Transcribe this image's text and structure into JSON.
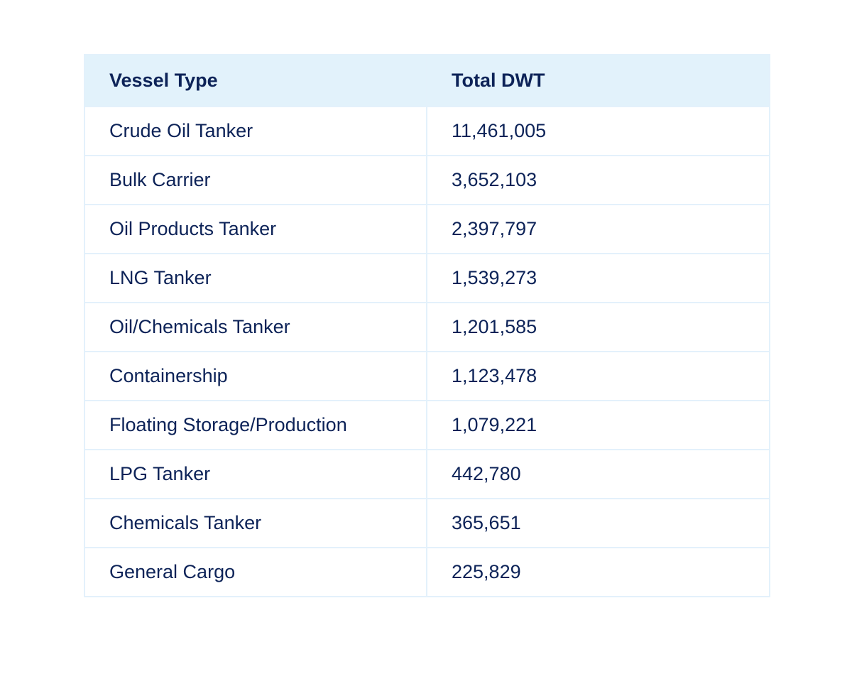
{
  "chart_data": {
    "type": "table",
    "columns": [
      "Vessel Type",
      "Total DWT"
    ],
    "rows": [
      [
        "Crude Oil Tanker",
        "11,461,005"
      ],
      [
        "Bulk Carrier",
        "3,652,103"
      ],
      [
        "Oil Products Tanker",
        "2,397,797"
      ],
      [
        "LNG Tanker",
        "1,539,273"
      ],
      [
        "Oil/Chemicals Tanker",
        "1,201,585"
      ],
      [
        "Containership",
        "1,123,478"
      ],
      [
        "Floating Storage/Production",
        "1,079,221"
      ],
      [
        "LPG Tanker",
        "442,780"
      ],
      [
        "Chemicals Tanker",
        "365,651"
      ],
      [
        "General Cargo",
        "225,829"
      ]
    ],
    "colors": {
      "header_bg": "#e2f2fb",
      "border": "#e3f1fb",
      "text": "#0d2358"
    }
  }
}
